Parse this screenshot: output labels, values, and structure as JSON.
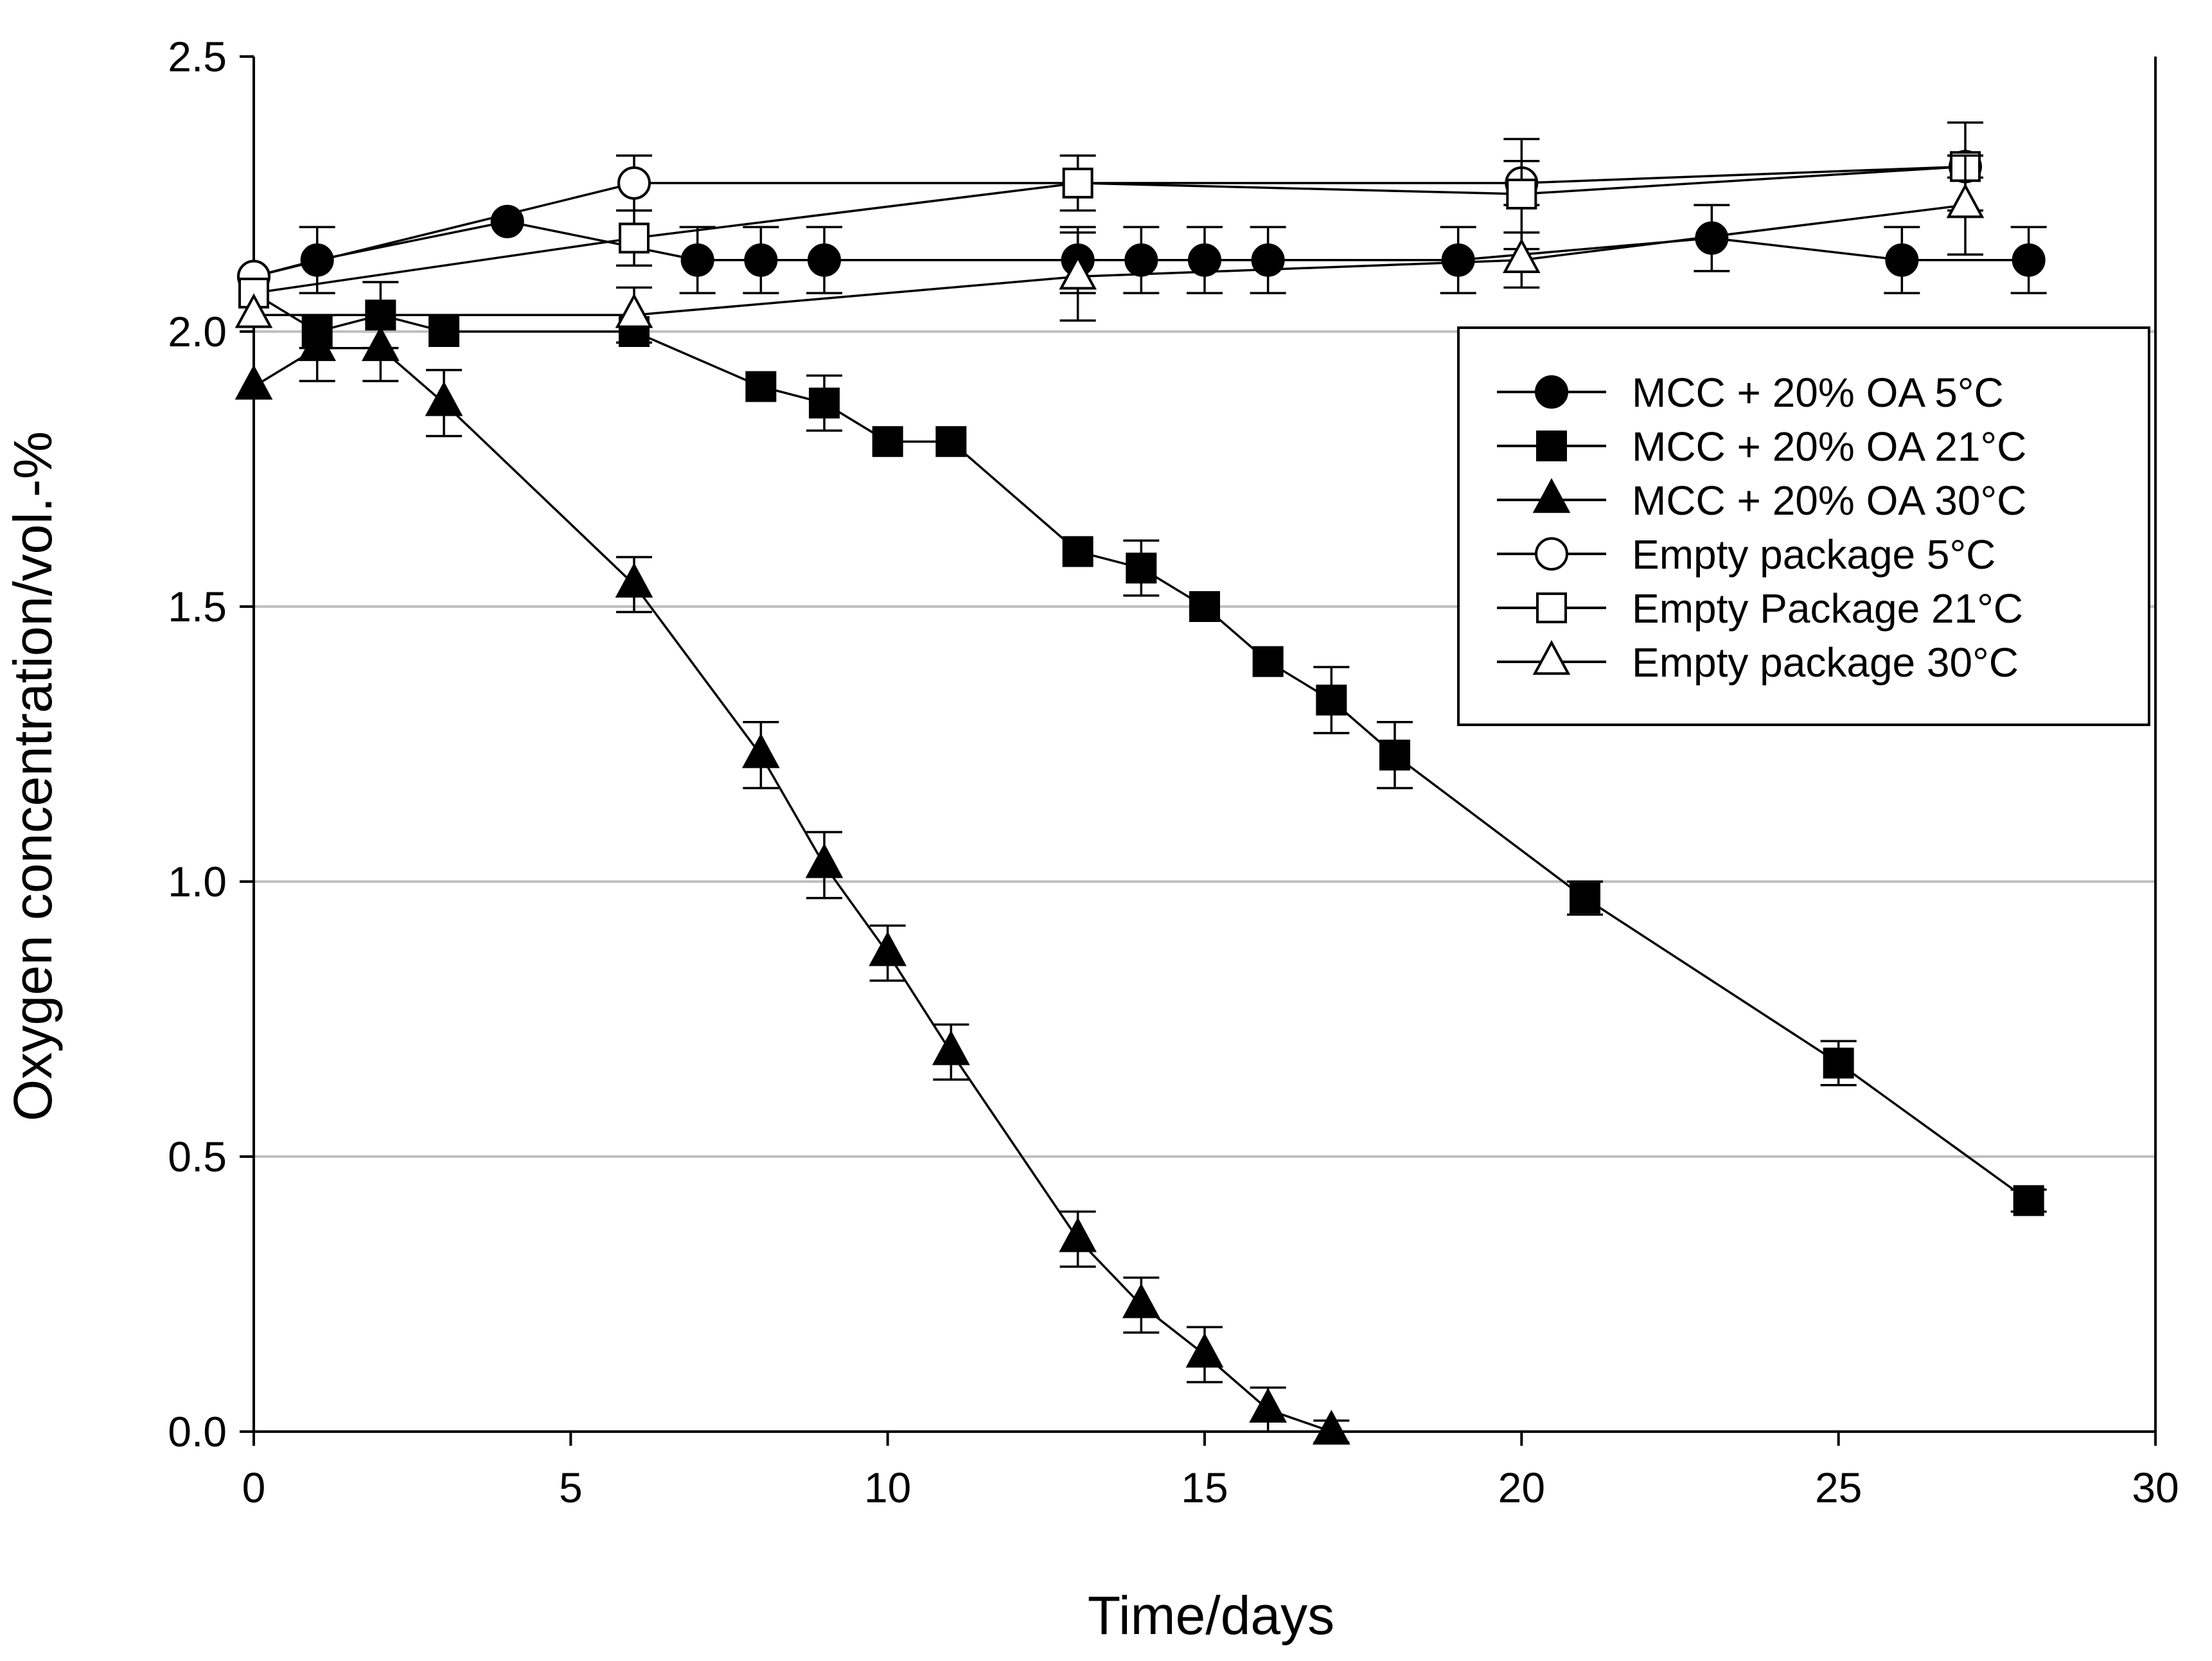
{
  "chart_data": {
    "type": "line",
    "title": "",
    "xlabel": "Time/days",
    "ylabel": "Oxygen concentration/vol.-%",
    "xlim": [
      0,
      30
    ],
    "ylim": [
      0,
      2.5
    ],
    "xticks": [
      0,
      5,
      10,
      15,
      20,
      25,
      30
    ],
    "yticks": [
      0.0,
      0.5,
      1.0,
      1.5,
      2.0,
      2.5
    ],
    "xtick_labels": [
      "0",
      "5",
      "10",
      "15",
      "20",
      "25",
      "30"
    ],
    "ytick_labels": [
      "0.0",
      "0.5",
      "1.0",
      "1.5",
      "2.0",
      "2.5"
    ],
    "grid": "horizontal",
    "legend_position": "upper-right",
    "series": [
      {
        "name": "MCC + 20% OA 5°C",
        "marker": "circle",
        "filled": true,
        "x": [
          0,
          1,
          4,
          7,
          8,
          9,
          13,
          14,
          15,
          16,
          19,
          23,
          26,
          28
        ],
        "y": [
          2.1,
          2.13,
          2.2,
          2.13,
          2.13,
          2.13,
          2.13,
          2.13,
          2.13,
          2.13,
          2.13,
          2.17,
          2.13,
          2.13
        ],
        "err": [
          0,
          0.06,
          0,
          0.06,
          0.06,
          0.06,
          0.06,
          0.06,
          0.06,
          0.06,
          0.06,
          0.06,
          0.06,
          0.06
        ]
      },
      {
        "name": "MCC + 20% OA 21°C",
        "marker": "square",
        "filled": true,
        "x": [
          0,
          1,
          2,
          3,
          6,
          8,
          9,
          10,
          11,
          13,
          14,
          15,
          16,
          17,
          18,
          21,
          25,
          28
        ],
        "y": [
          2.07,
          2.0,
          2.03,
          2.0,
          2.0,
          1.9,
          1.87,
          1.8,
          1.8,
          1.6,
          1.57,
          1.5,
          1.4,
          1.33,
          1.23,
          0.97,
          0.67,
          0.42
        ],
        "err": [
          0,
          0.03,
          0.06,
          0,
          0,
          0,
          0.05,
          0,
          0,
          0,
          0.05,
          0,
          0,
          0.06,
          0.06,
          0.03,
          0.04,
          0.02
        ]
      },
      {
        "name": "MCC + 20% OA 30°C",
        "marker": "triangle",
        "filled": true,
        "x": [
          0,
          1,
          2,
          3,
          6,
          8,
          9,
          10,
          11,
          13,
          14,
          15,
          16,
          17
        ],
        "y": [
          1.9,
          1.97,
          1.97,
          1.87,
          1.54,
          1.23,
          1.03,
          0.87,
          0.69,
          0.35,
          0.23,
          0.14,
          0.04,
          0.0
        ],
        "err": [
          0,
          0.06,
          0.06,
          0.06,
          0.05,
          0.06,
          0.06,
          0.05,
          0.05,
          0.05,
          0.05,
          0.05,
          0.04,
          0.02
        ]
      },
      {
        "name": "Empty package 5°C",
        "marker": "circle",
        "filled": false,
        "x": [
          0,
          6,
          20,
          27
        ],
        "y": [
          2.1,
          2.27,
          2.27,
          2.3
        ],
        "err": [
          0,
          0.05,
          0.04,
          0.02
        ]
      },
      {
        "name": "Empty Package 21°C",
        "marker": "square",
        "filled": false,
        "x": [
          0,
          6,
          13,
          20,
          27
        ],
        "y": [
          2.07,
          2.17,
          2.27,
          2.25,
          2.3
        ],
        "err": [
          0,
          0.05,
          0.05,
          0.1,
          0.08
        ]
      },
      {
        "name": "Empty package 30°C",
        "marker": "triangle",
        "filled": false,
        "x": [
          0,
          6,
          13,
          20,
          27
        ],
        "y": [
          2.03,
          2.03,
          2.1,
          2.13,
          2.23
        ],
        "err": [
          0,
          0.05,
          0.08,
          0.05,
          0.09
        ]
      }
    ]
  }
}
